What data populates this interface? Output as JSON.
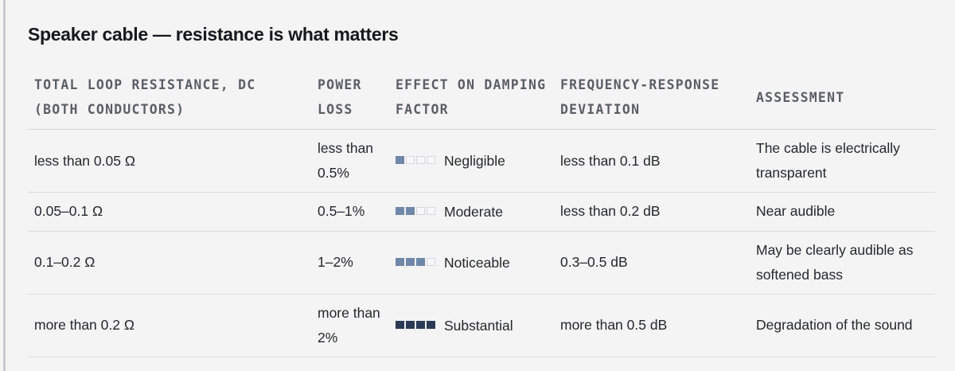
{
  "title": "Speaker cable — resistance is what matters",
  "columns": [
    "Total loop resistance, DC (both conductors)",
    "Power loss",
    "Effect on damping factor",
    "Frequency-response deviation",
    "Assessment"
  ],
  "rows": [
    {
      "resistance": "less than 0.05 Ω",
      "power_loss": "less than 0.5%",
      "effect": {
        "level": 1,
        "max": 4,
        "label": "Negligible",
        "color": "#6f87a8"
      },
      "deviation": "less than 0.1 dB",
      "assessment": "The cable is electrically transparent"
    },
    {
      "resistance": "0.05–0.1 Ω",
      "power_loss": "0.5–1%",
      "effect": {
        "level": 2,
        "max": 4,
        "label": "Moderate",
        "color": "#6f87a8"
      },
      "deviation": "less than 0.2 dB",
      "assessment": "Near audible"
    },
    {
      "resistance": "0.1–0.2 Ω",
      "power_loss": "1–2%",
      "effect": {
        "level": 3,
        "max": 4,
        "label": "Noticeable",
        "color": "#6f87a8"
      },
      "deviation": "0.3–0.5 dB",
      "assessment": "May be clearly audible as softened bass"
    },
    {
      "resistance": "more than 0.2 Ω",
      "power_loss": "more than 2%",
      "effect": {
        "level": 4,
        "max": 4,
        "label": "Substantial",
        "color": "#2b3a55"
      },
      "deviation": "more than 0.5 dB",
      "assessment": "Degradation of the sound"
    }
  ]
}
